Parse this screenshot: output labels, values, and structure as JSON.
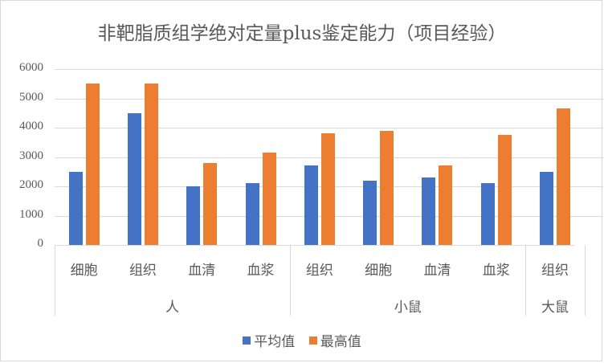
{
  "chart_data": {
    "type": "bar",
    "title": "非靶脂质组学绝对定量plus鉴定能力（项目经验）",
    "xlabel": "",
    "ylabel": "",
    "ylim": [
      0,
      6000
    ],
    "yticks": [
      0,
      1000,
      2000,
      3000,
      4000,
      5000,
      6000
    ],
    "grid": true,
    "legend_position": "bottom",
    "groups": [
      {
        "name": "人",
        "categories": [
          "细胞",
          "组织",
          "血清",
          "血浆"
        ]
      },
      {
        "name": "小鼠",
        "categories": [
          "组织",
          "细胞",
          "血清",
          "血浆"
        ]
      },
      {
        "name": "大鼠",
        "categories": [
          "组织"
        ]
      }
    ],
    "categories": [
      "人-细胞",
      "人-组织",
      "人-血清",
      "人-血浆",
      "小鼠-组织",
      "小鼠-细胞",
      "小鼠-血清",
      "小鼠-血浆",
      "大鼠-组织"
    ],
    "series": [
      {
        "name": "平均值",
        "color": "#4472C4",
        "values": [
          2500,
          4500,
          2000,
          2100,
          2700,
          2200,
          2300,
          2100,
          2500
        ]
      },
      {
        "name": "最高值",
        "color": "#ED7D31",
        "values": [
          5500,
          5500,
          2800,
          3150,
          3800,
          3900,
          2700,
          3750,
          4650
        ]
      }
    ]
  },
  "labels": {
    "title": "非靶脂质组学绝对定量plus鉴定能力（项目经验）",
    "yticks": [
      "6000",
      "5000",
      "4000",
      "3000",
      "2000",
      "1000",
      "0"
    ],
    "cats": [
      "细胞",
      "组织",
      "血清",
      "血浆",
      "组织",
      "细胞",
      "血清",
      "血浆",
      "组织"
    ],
    "groups": [
      "人",
      "小鼠",
      "大鼠"
    ],
    "legend": [
      "平均值",
      "最高值"
    ]
  }
}
